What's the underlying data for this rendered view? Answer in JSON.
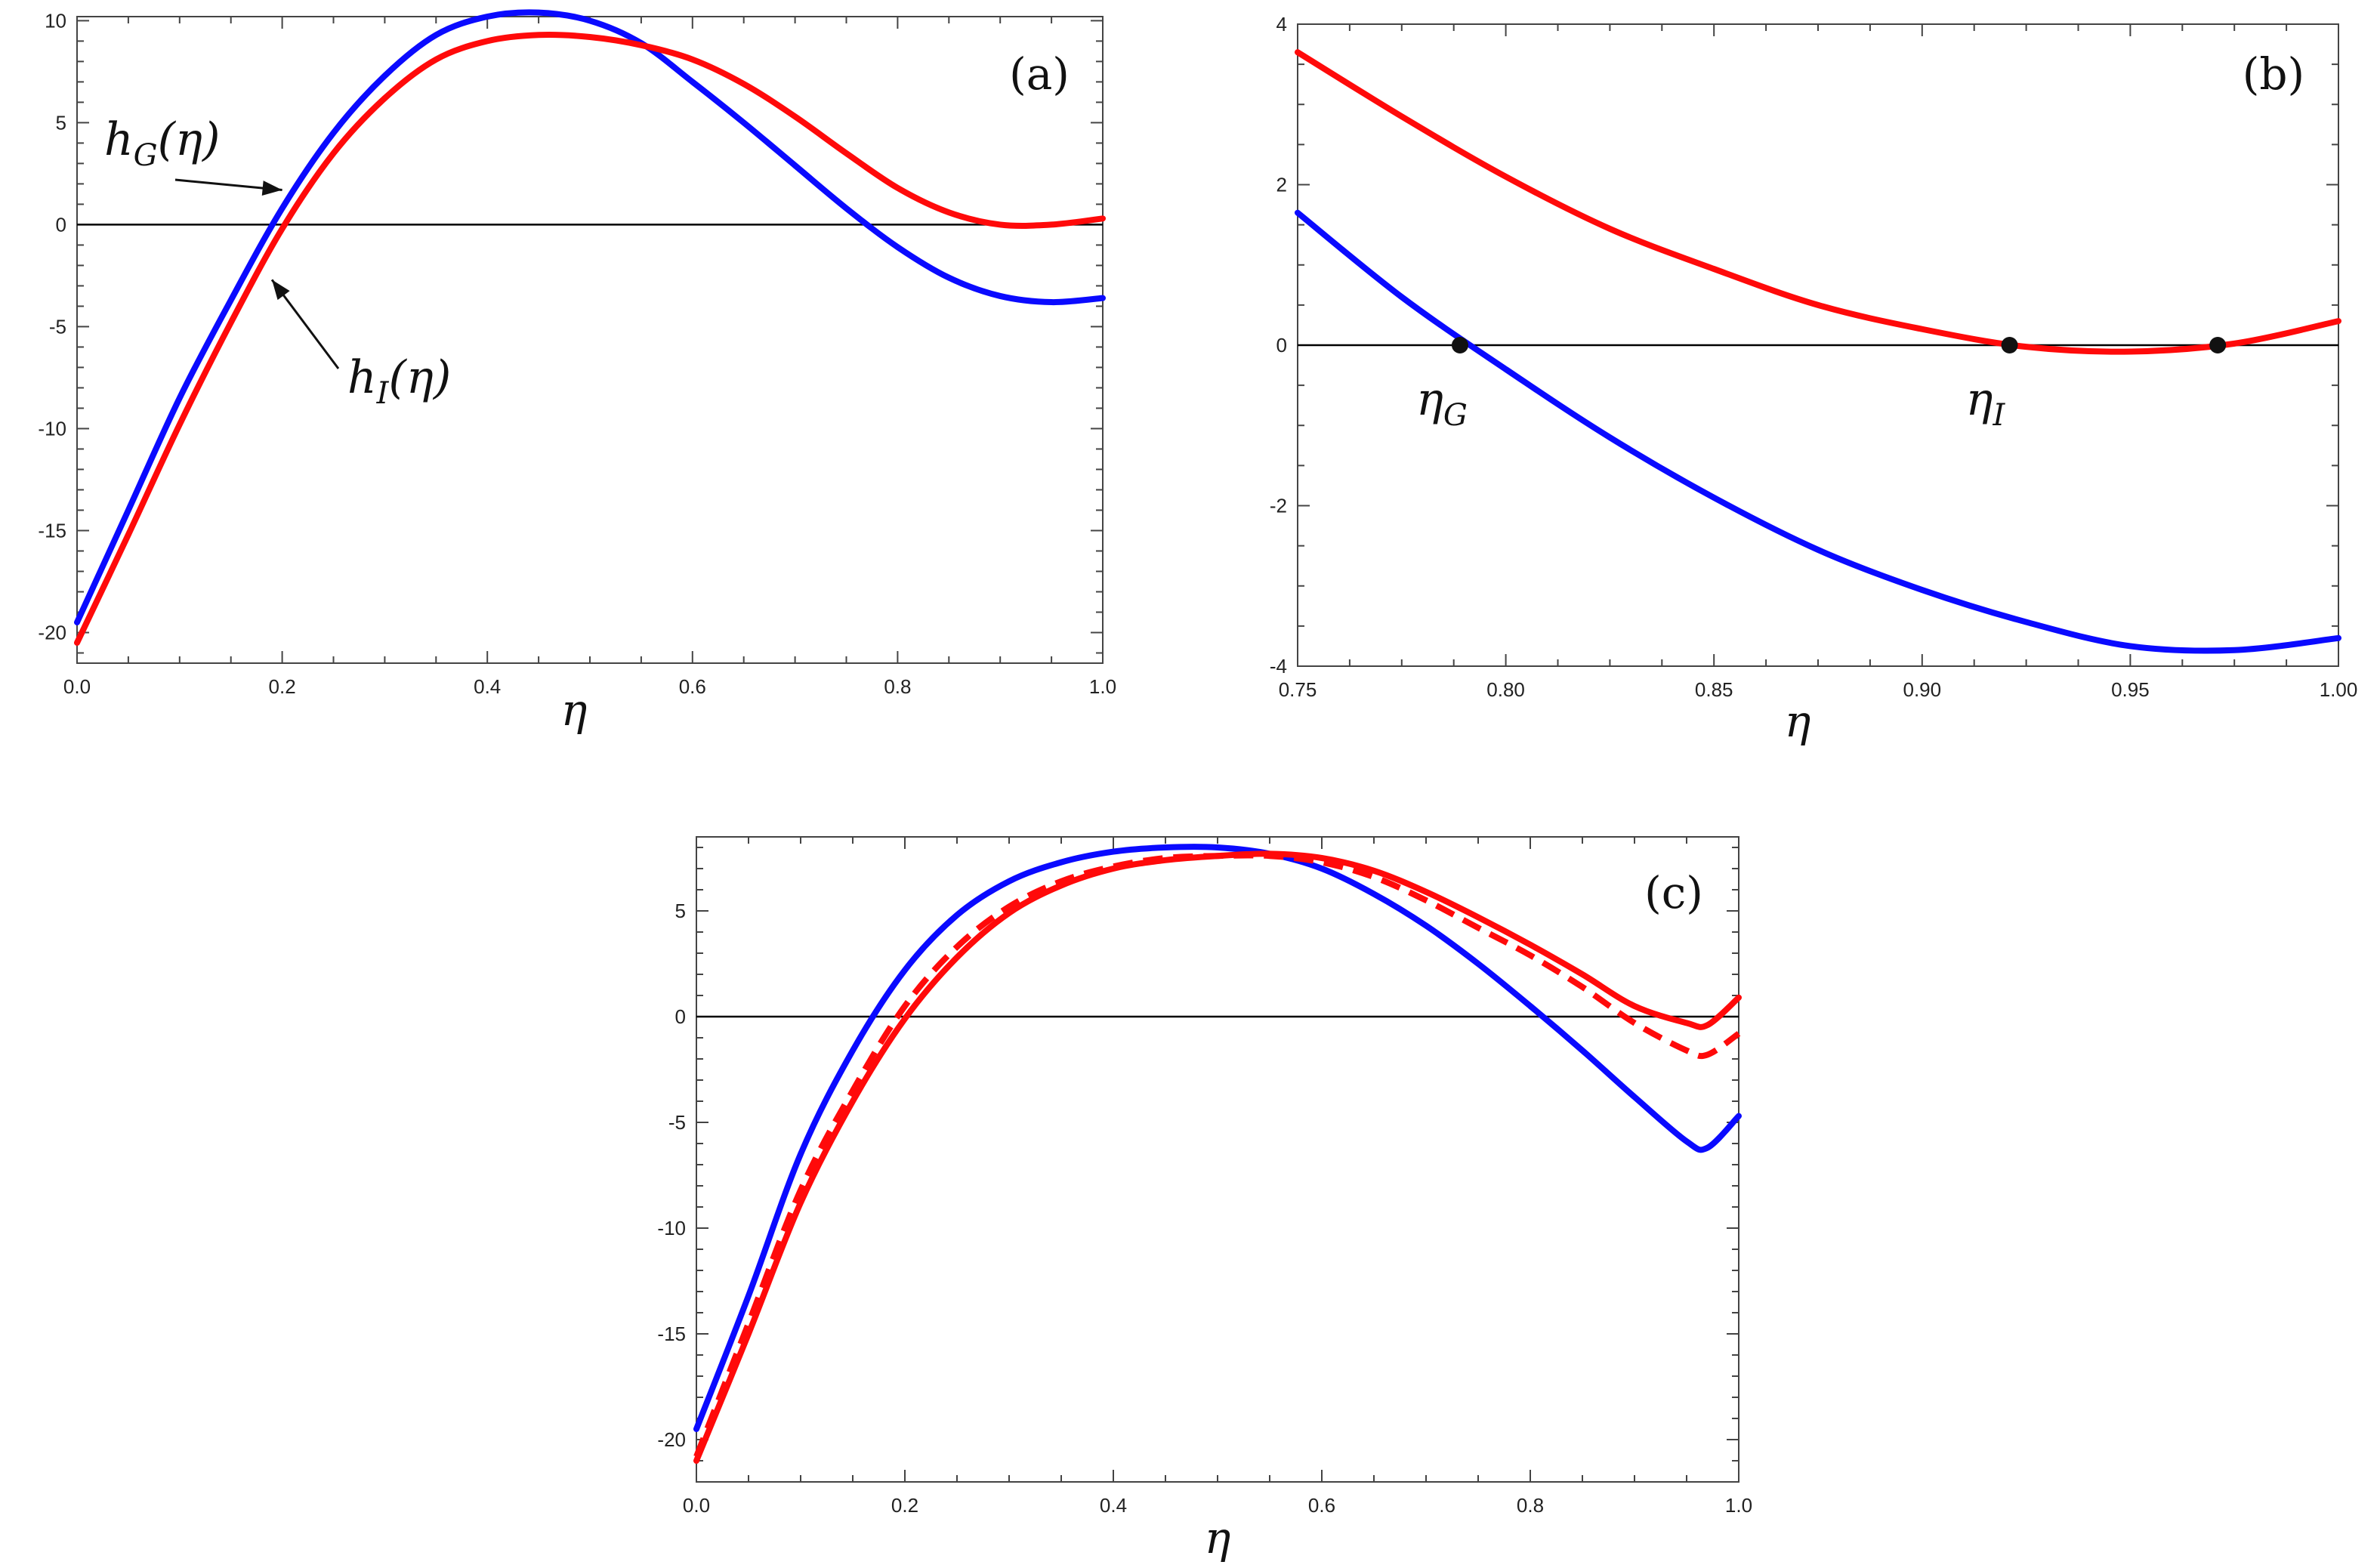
{
  "colors": {
    "blue": "#0a0aff",
    "red": "#ff0a0a",
    "axis": "#444444",
    "zero": "#000000"
  },
  "chart_data": [
    {
      "type": "line",
      "panel_label": "(a)",
      "xlabel": "η",
      "xlim": [
        0.0,
        1.0
      ],
      "ylim": [
        -21.5,
        10.2
      ],
      "xticks": [
        0.0,
        0.2,
        0.4,
        0.6,
        0.8,
        1.0
      ],
      "xtick_labels": [
        "0.0",
        "0.2",
        "0.4",
        "0.6",
        "0.8",
        "1.0"
      ],
      "yticks": [
        -20,
        -15,
        -10,
        -5,
        0,
        5,
        10
      ],
      "ytick_labels": [
        "-20",
        "-15",
        "-10",
        "-5",
        "0",
        "5",
        "10"
      ],
      "annotations": [
        {
          "text": "h",
          "sub": "G",
          "suffix": "(η)",
          "target": [
            0.2,
            1.7
          ]
        },
        {
          "text": "h",
          "sub": "I",
          "suffix": "(η)",
          "target": [
            0.19,
            -2.7
          ]
        }
      ],
      "series": [
        {
          "name": "h_G(η)",
          "color": "blue",
          "dash": false,
          "x": [
            0.0,
            0.05,
            0.1,
            0.15,
            0.2,
            0.25,
            0.3,
            0.35,
            0.4,
            0.45,
            0.5,
            0.55,
            0.6,
            0.65,
            0.7,
            0.75,
            0.8,
            0.85,
            0.9,
            0.95,
            1.0
          ],
          "y": [
            -19.5,
            -14.0,
            -8.5,
            -3.7,
            0.8,
            4.5,
            7.3,
            9.3,
            10.2,
            10.4,
            10.0,
            8.9,
            7.0,
            5.0,
            2.9,
            0.8,
            -1.1,
            -2.6,
            -3.5,
            -3.8,
            -3.6
          ]
        },
        {
          "name": "h_I(η)",
          "color": "red",
          "dash": false,
          "x": [
            0.0,
            0.05,
            0.1,
            0.15,
            0.2,
            0.25,
            0.3,
            0.35,
            0.4,
            0.45,
            0.5,
            0.55,
            0.6,
            0.65,
            0.7,
            0.75,
            0.8,
            0.85,
            0.9,
            0.95,
            1.0
          ],
          "y": [
            -20.5,
            -15.2,
            -9.8,
            -4.8,
            -0.2,
            3.5,
            6.2,
            8.1,
            9.0,
            9.3,
            9.2,
            8.8,
            8.1,
            6.9,
            5.3,
            3.5,
            1.8,
            0.6,
            0.0,
            0.0,
            0.3
          ]
        }
      ]
    },
    {
      "type": "line",
      "panel_label": "(b)",
      "xlabel": "η",
      "xlim": [
        0.75,
        1.0
      ],
      "ylim": [
        -4.0,
        4.0
      ],
      "xticks": [
        0.75,
        0.8,
        0.85,
        0.9,
        0.95,
        1.0
      ],
      "xtick_labels": [
        "0.75",
        "0.80",
        "0.85",
        "0.90",
        "0.95",
        "1.00"
      ],
      "yticks": [
        -4,
        -2,
        0,
        2,
        4
      ],
      "ytick_labels": [
        "-4",
        "-2",
        "0",
        "2",
        "4"
      ],
      "points": [
        {
          "x": 0.789,
          "y": 0.0,
          "label": "η",
          "sub": "G"
        },
        {
          "x": 0.921,
          "y": 0.0,
          "label": "η",
          "sub": "I"
        },
        {
          "x": 0.971,
          "y": 0.0,
          "label": "",
          "sub": ""
        }
      ],
      "series": [
        {
          "name": "h_G(η)",
          "color": "blue",
          "dash": false,
          "x": [
            0.75,
            0.775,
            0.8,
            0.825,
            0.85,
            0.875,
            0.9,
            0.925,
            0.95,
            0.975,
            1.0
          ],
          "y": [
            1.65,
            0.6,
            -0.3,
            -1.15,
            -1.9,
            -2.55,
            -3.05,
            -3.45,
            -3.75,
            -3.8,
            -3.65
          ]
        },
        {
          "name": "h_I(η)",
          "color": "red",
          "dash": false,
          "x": [
            0.75,
            0.775,
            0.8,
            0.825,
            0.85,
            0.875,
            0.9,
            0.925,
            0.95,
            0.975,
            1.0
          ],
          "y": [
            3.65,
            2.85,
            2.1,
            1.45,
            0.95,
            0.5,
            0.2,
            -0.02,
            -0.08,
            0.02,
            0.3
          ]
        }
      ]
    },
    {
      "type": "line",
      "panel_label": "(c)",
      "xlabel": "η",
      "xlim": [
        0.0,
        1.0
      ],
      "ylim": [
        -22.0,
        8.5
      ],
      "xticks": [
        0.0,
        0.2,
        0.4,
        0.6,
        0.8,
        1.0
      ],
      "xtick_labels": [
        "0.0",
        "0.2",
        "0.4",
        "0.6",
        "0.8",
        "1.0"
      ],
      "yticks": [
        -20,
        -15,
        -10,
        -5,
        0,
        5
      ],
      "ytick_labels": [
        "-20",
        "-15",
        "-10",
        "-5",
        "0",
        "5"
      ],
      "series": [
        {
          "name": "blue solid",
          "color": "blue",
          "dash": false,
          "x": [
            0.0,
            0.05,
            0.1,
            0.15,
            0.2,
            0.25,
            0.3,
            0.35,
            0.4,
            0.45,
            0.5,
            0.55,
            0.6,
            0.65,
            0.7,
            0.75,
            0.8,
            0.85,
            0.9,
            0.95,
            0.97,
            1.0
          ],
          "y": [
            -19.5,
            -13.2,
            -6.5,
            -1.6,
            2.2,
            4.8,
            6.4,
            7.3,
            7.8,
            8.0,
            8.0,
            7.7,
            7.0,
            5.8,
            4.3,
            2.5,
            0.5,
            -1.6,
            -3.8,
            -5.9,
            -6.2,
            -4.7
          ]
        },
        {
          "name": "red dashed",
          "color": "red",
          "dash": true,
          "x": [
            0.0,
            0.05,
            0.1,
            0.15,
            0.2,
            0.25,
            0.3,
            0.35,
            0.4,
            0.45,
            0.5,
            0.55,
            0.6,
            0.65,
            0.7,
            0.75,
            0.8,
            0.85,
            0.9,
            0.95,
            0.97,
            1.0
          ],
          "y": [
            -20.8,
            -14.5,
            -8.2,
            -3.5,
            0.5,
            3.3,
            5.2,
            6.4,
            7.1,
            7.5,
            7.6,
            7.6,
            7.3,
            6.6,
            5.5,
            4.2,
            2.9,
            1.4,
            -0.3,
            -1.6,
            -1.8,
            -0.8
          ]
        },
        {
          "name": "red solid",
          "color": "red",
          "dash": false,
          "x": [
            0.0,
            0.05,
            0.1,
            0.15,
            0.2,
            0.25,
            0.3,
            0.35,
            0.4,
            0.45,
            0.5,
            0.55,
            0.6,
            0.65,
            0.7,
            0.75,
            0.8,
            0.85,
            0.9,
            0.95,
            0.97,
            1.0
          ],
          "y": [
            -21.0,
            -15.0,
            -8.8,
            -4.0,
            -0.1,
            2.8,
            4.9,
            6.2,
            7.0,
            7.4,
            7.6,
            7.7,
            7.5,
            6.9,
            5.9,
            4.7,
            3.4,
            2.0,
            0.5,
            -0.3,
            -0.4,
            0.9
          ]
        }
      ]
    }
  ]
}
